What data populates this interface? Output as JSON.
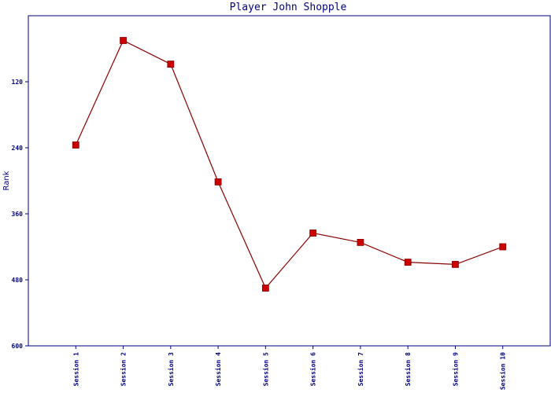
{
  "chart_data": {
    "type": "line",
    "title": "Player John Shopple",
    "xlabel": "",
    "ylabel": "Rank",
    "categories": [
      "Session 1",
      "Session 2",
      "Session 3",
      "Session 4",
      "Session 5",
      "Session 6",
      "Session 7",
      "Session 8",
      "Session 9",
      "Session 10"
    ],
    "series": [
      {
        "values": [
          235,
          45,
          88,
          302,
          495,
          395,
          412,
          448,
          452,
          420
        ]
      }
    ],
    "ylim": [
      0,
      600
    ],
    "y_inverted": true,
    "yticks": [
      120,
      240,
      360,
      480,
      600
    ],
    "grid": false,
    "legend": "none",
    "colors": {
      "axis": "#000080",
      "line": "#880000",
      "marker": "#cc0000",
      "text": "#000080"
    }
  }
}
